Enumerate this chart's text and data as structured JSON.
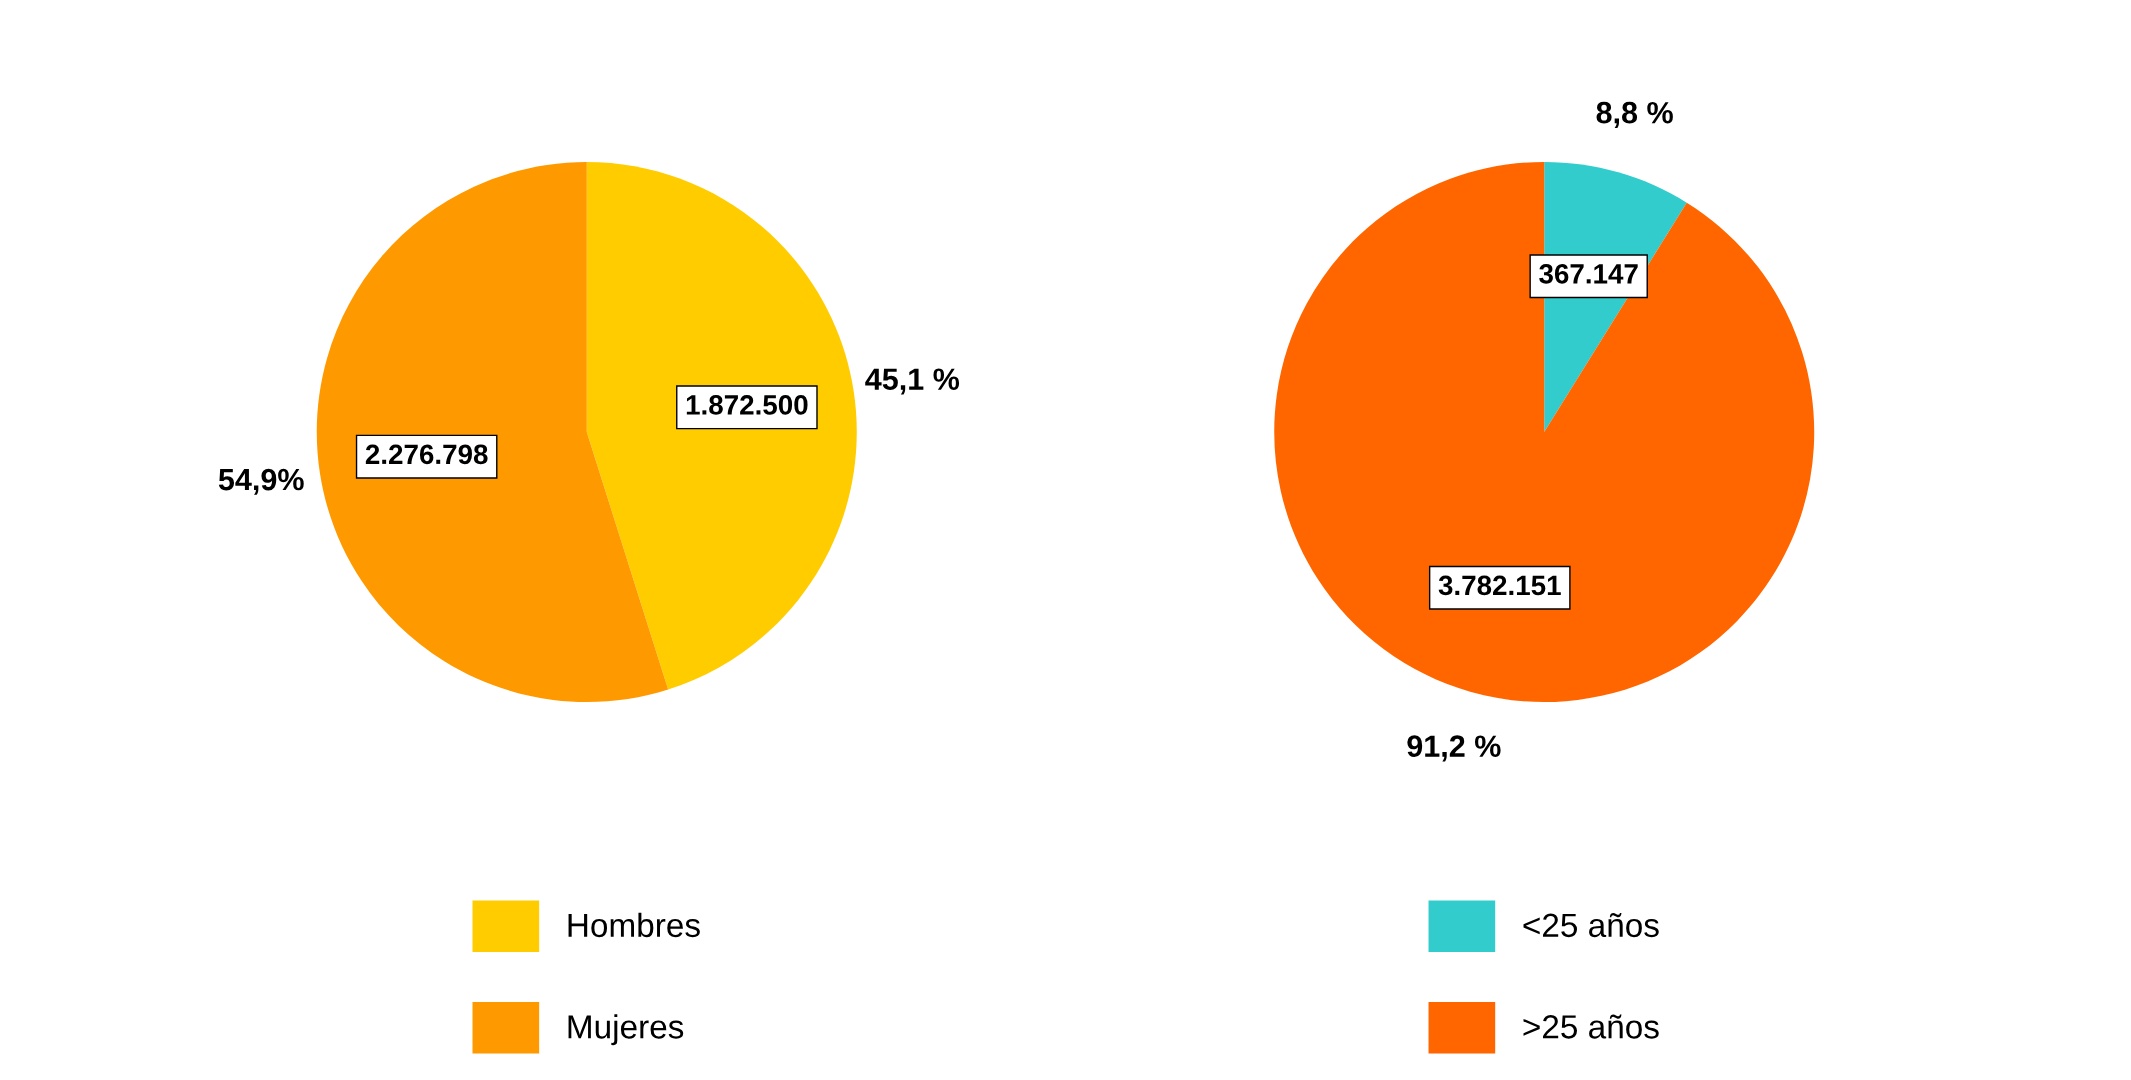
{
  "chart_data": [
    {
      "type": "pie",
      "categories": [
        "Hombres",
        "Mujeres"
      ],
      "values": [
        1872500,
        2276798
      ],
      "colors": [
        "#ffcc00",
        "#ff9900"
      ],
      "value_labels": [
        "1.872.500",
        "2.276.798"
      ],
      "annotations": [
        "45,1 %",
        "54,9%"
      ],
      "legend": "bottom"
    },
    {
      "type": "pie",
      "categories": [
        "<25 años",
        ">25 años"
      ],
      "values": [
        367147,
        3782151
      ],
      "colors": [
        "#33cccc",
        "#ff6600"
      ],
      "value_labels": [
        "367.147",
        "3.782.151"
      ],
      "annotations": [
        "8,8 %",
        "91,2 %"
      ],
      "legend": "bottom"
    }
  ]
}
